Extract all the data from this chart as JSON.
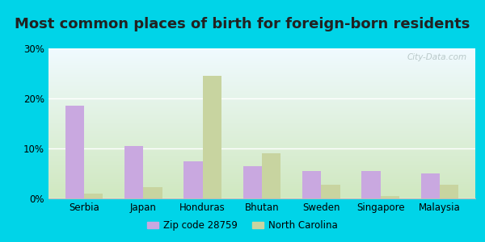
{
  "title": "Most common places of birth for foreign-born residents",
  "categories": [
    "Serbia",
    "Japan",
    "Honduras",
    "Bhutan",
    "Sweden",
    "Singapore",
    "Malaysia"
  ],
  "zip_values": [
    18.5,
    10.5,
    7.5,
    6.5,
    5.5,
    5.5,
    5.0
  ],
  "nc_values": [
    1.0,
    2.2,
    24.5,
    9.0,
    2.8,
    0.5,
    2.7
  ],
  "zip_color": "#c9a8e0",
  "nc_color": "#c8d4a0",
  "bg_outer": "#00d4e8",
  "bg_inner_topleft": "#f0faff",
  "bg_inner_bottomright": "#d0e8c0",
  "ylim": [
    0,
    30
  ],
  "yticks": [
    0,
    10,
    20,
    30
  ],
  "ytick_labels": [
    "0%",
    "10%",
    "20%",
    "30%"
  ],
  "legend_zip": "Zip code 28759",
  "legend_nc": "North Carolina",
  "watermark": "City-Data.com",
  "bar_width": 0.32,
  "title_fontsize": 13
}
